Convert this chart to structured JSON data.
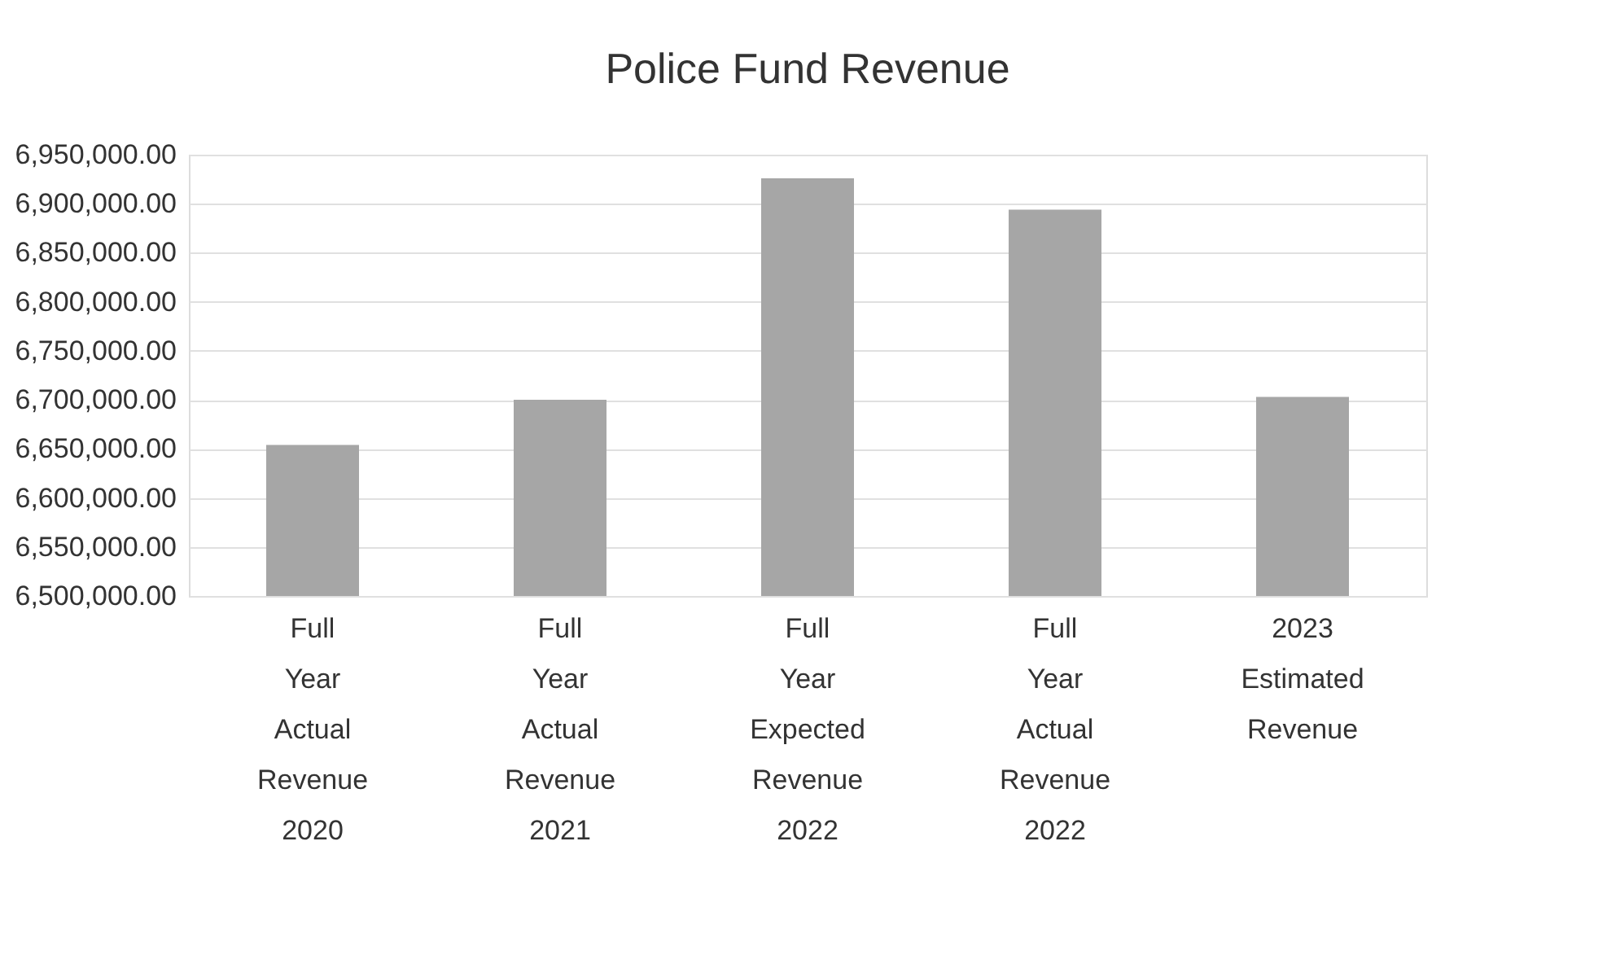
{
  "chart_data": {
    "type": "bar",
    "title": "Police Fund Revenue",
    "categories": [
      "Full Year Actual Revenue 2020",
      "Full Year Actual Revenue 2021",
      "Full Year Expected Revenue 2022",
      "Full Year Actual Revenue 2022",
      "2023 Estimated Revenue"
    ],
    "values": [
      6654000,
      6700000,
      6926000,
      6894000,
      6703000
    ],
    "color": "#a6a6a6",
    "ylim": [
      6500000,
      6950000
    ],
    "yticks": [
      {
        "value": 6500000,
        "label": "6,500,000.00"
      },
      {
        "value": 6550000,
        "label": "6,550,000.00"
      },
      {
        "value": 6600000,
        "label": "6,600,000.00"
      },
      {
        "value": 6650000,
        "label": "6,650,000.00"
      },
      {
        "value": 6700000,
        "label": "6,700,000.00"
      },
      {
        "value": 6750000,
        "label": "6,750,000.00"
      },
      {
        "value": 6800000,
        "label": "6,800,000.00"
      },
      {
        "value": 6850000,
        "label": "6,850,000.00"
      },
      {
        "value": 6900000,
        "label": "6,900,000.00"
      },
      {
        "value": 6950000,
        "label": "6,950,000.00"
      }
    ],
    "grid": "y"
  }
}
